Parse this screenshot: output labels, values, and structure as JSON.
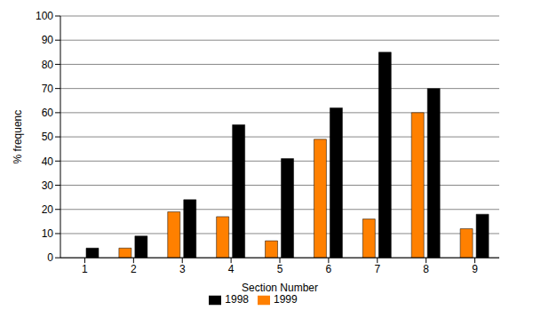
{
  "chart_data": {
    "type": "bar",
    "x_label": "Section Number",
    "y_label": "% frequenc",
    "categories": [
      "1",
      "2",
      "3",
      "4",
      "5",
      "6",
      "7",
      "8",
      "9"
    ],
    "series": [
      {
        "name": "1999",
        "color": "#ff8000",
        "values": [
          0,
          4,
          19,
          17,
          7,
          49,
          16,
          60,
          12
        ]
      },
      {
        "name": "1998",
        "color": "#000000",
        "values": [
          4,
          9,
          24,
          55,
          41,
          62,
          85,
          70,
          18
        ]
      }
    ],
    "ylim": [
      0,
      100
    ],
    "yticks": [
      0,
      10,
      20,
      30,
      40,
      50,
      60,
      70,
      80,
      90,
      100
    ],
    "grid": true,
    "legend": "bottom"
  }
}
